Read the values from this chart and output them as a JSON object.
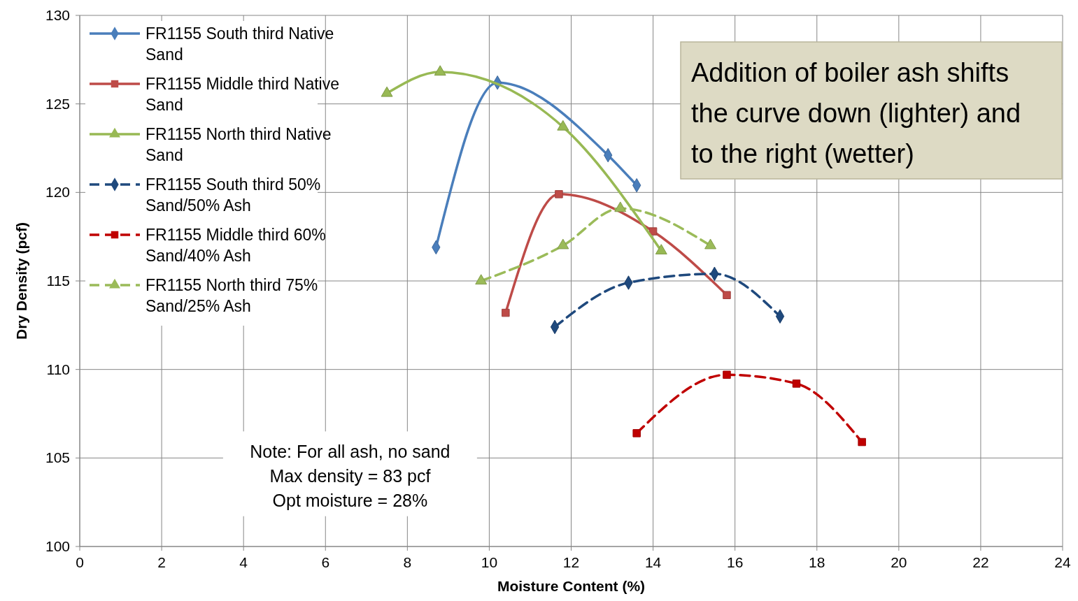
{
  "chart_data": {
    "type": "scatter",
    "xlabel": "Moisture Content (%)",
    "ylabel": "Dry Density (pcf)",
    "xlim": [
      0,
      24
    ],
    "xticks": [
      0,
      2,
      4,
      6,
      8,
      10,
      12,
      14,
      16,
      18,
      20,
      22,
      24
    ],
    "ylim": [
      100,
      130
    ],
    "yticks": [
      100,
      105,
      110,
      115,
      120,
      125,
      130
    ],
    "grid": true,
    "legend": "top left",
    "series": [
      {
        "name": "FR1155 South third Native Sand",
        "color": "#4a7ebb",
        "type": "line",
        "marker": "diamond",
        "line_style": "solid",
        "x": [
          8.7,
          10.2,
          12.9,
          13.6
        ],
        "values": [
          116.9,
          126.2,
          122.1,
          120.4
        ]
      },
      {
        "name": "FR1155 Middle third Native Sand",
        "color": "#be4b48",
        "type": "line",
        "marker": "square",
        "line_style": "solid",
        "x": [
          10.4,
          11.7,
          14.0,
          15.8
        ],
        "values": [
          113.2,
          119.9,
          117.8,
          114.2
        ]
      },
      {
        "name": "FR1155 North third Native Sand",
        "color": "#98b954",
        "type": "line",
        "marker": "triangle",
        "line_style": "solid",
        "x": [
          7.5,
          8.8,
          11.8,
          14.2
        ],
        "values": [
          125.6,
          126.8,
          123.7,
          116.7
        ]
      },
      {
        "name": "FR1155 South third 50% Sand/50% Ash",
        "color": "#1f497d",
        "type": "line",
        "marker": "diamond",
        "line_style": "dashed",
        "x": [
          11.6,
          13.4,
          15.5,
          17.1
        ],
        "values": [
          112.4,
          114.9,
          115.4,
          113.0
        ]
      },
      {
        "name": "FR1155 Middle third 60% Sand/40% Ash",
        "color": "#c00000",
        "type": "line",
        "marker": "square",
        "line_style": "dashed",
        "x": [
          13.6,
          15.8,
          17.5,
          19.1
        ],
        "values": [
          106.4,
          109.7,
          109.2,
          105.9
        ]
      },
      {
        "name": "FR1155 North third 75% Sand/25% Ash",
        "color": "#9bbb59",
        "type": "line",
        "marker": "triangle",
        "line_style": "dashed",
        "x": [
          9.8,
          11.8,
          13.2,
          15.4
        ],
        "values": [
          115.0,
          117.0,
          119.1,
          117.0
        ]
      }
    ],
    "annotations": [
      "Addition of boiler ash shifts the curve down (lighter) and to the right (wetter)",
      "Note: For all ash, no sand\nMax density = 83 pcf\nOpt moisture = 28%"
    ]
  }
}
